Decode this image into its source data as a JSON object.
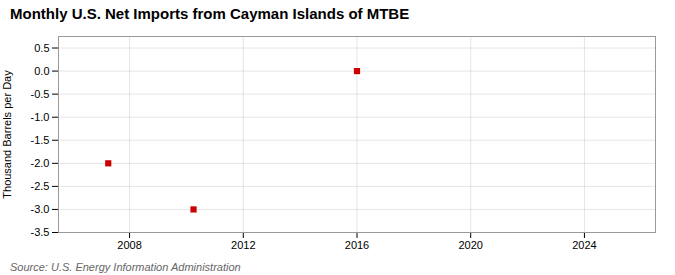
{
  "chart_data": {
    "type": "scatter",
    "title": "Monthly U.S. Net Imports from Cayman Islands of MTBE",
    "ylabel": "Thousand Barrels per Day",
    "source": "Source: U.S. Energy Information Administration",
    "x": [
      2007.25,
      2010.25,
      2016.0
    ],
    "values": [
      -2.0,
      -3.0,
      0.0
    ],
    "color": "#cc0000",
    "marker": "square",
    "xlim": [
      2005.5,
      2026.5
    ],
    "ylim": [
      -3.5,
      0.75
    ],
    "xticks": [
      2008,
      2012,
      2016,
      2020,
      2024
    ],
    "yticks": [
      0.5,
      {
        "value": 0,
        "label": "0.0"
      },
      -0.5,
      {
        "value": -1,
        "label": "-1.0"
      },
      -1.5,
      {
        "value": -2,
        "label": "-2.0"
      },
      -2.5,
      {
        "value": -3,
        "label": "-3.0"
      },
      -3.5
    ],
    "grid": true
  }
}
